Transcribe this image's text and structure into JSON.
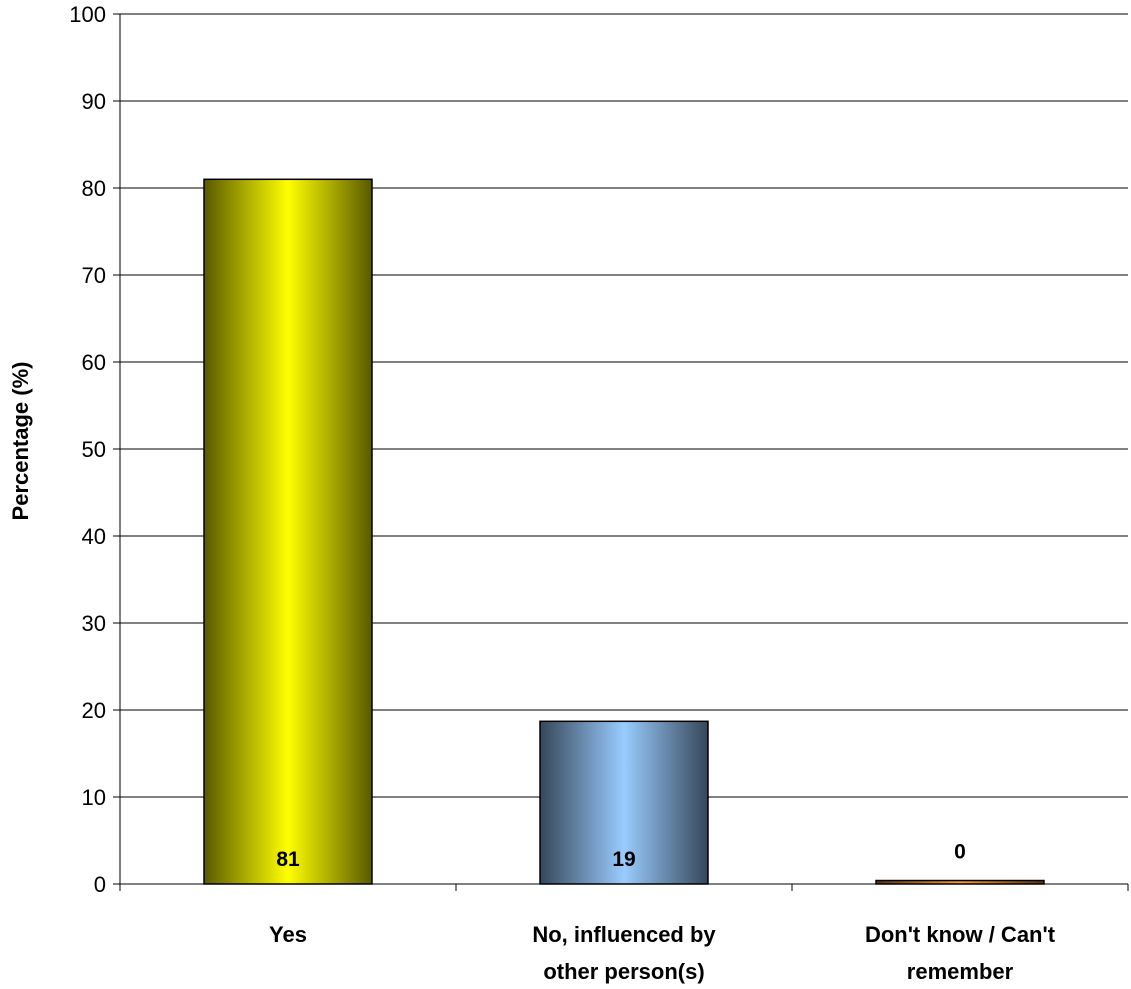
{
  "chart_data": {
    "type": "bar",
    "title": "",
    "xlabel": "",
    "ylabel": "Percentage (%)",
    "ylim": [
      0,
      100
    ],
    "yticks": [
      0,
      10,
      20,
      30,
      40,
      50,
      60,
      70,
      80,
      90,
      100
    ],
    "grid": true,
    "categories": [
      [
        "Yes"
      ],
      [
        "No, influenced by",
        "other person(s)"
      ],
      [
        "Don't know / Can't",
        "remember"
      ]
    ],
    "values": [
      81,
      18.7,
      0.4
    ],
    "data_labels": [
      "81",
      "19",
      "0"
    ],
    "colors": [
      "#ffff00",
      "#99ccff",
      "#ff9933"
    ]
  }
}
